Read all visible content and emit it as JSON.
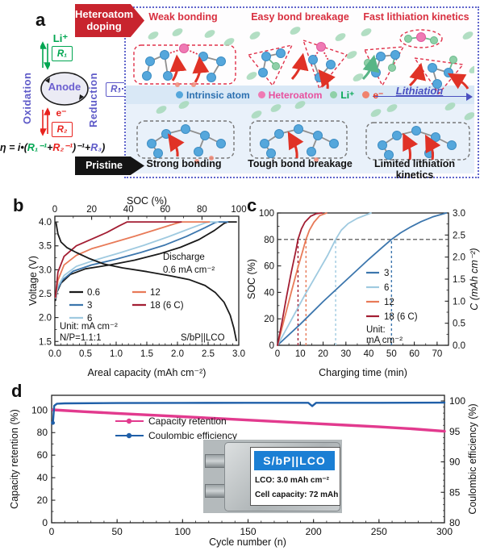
{
  "panel_a": {
    "label": "a",
    "banner_doped_line1": "Heteroatom",
    "banner_doped_line2": "doping",
    "banner_pristine": "Pristine",
    "li": "Li⁺",
    "r1": "R₁",
    "e": "e⁻",
    "r2": "R₂",
    "r3": "R₃",
    "anode": "Anode",
    "oxidation": "Oxidation",
    "reduction": "Reduction",
    "equation": {
      "p1": "η = i•(",
      "r1": "R₁⁻¹",
      "p2": "+",
      "r2": "R₂⁻¹",
      "p3": ")⁻¹+",
      "r3": "R₃",
      "p4": ")"
    },
    "headings_top": [
      "Weak bonding",
      "Easy bond breakage",
      "Fast lithiation kinetics"
    ],
    "headings_bottom": [
      "Strong bonding",
      "Tough bond breakage",
      "Limited lithiation kinetics"
    ],
    "legend": [
      {
        "label": "Intrinsic atom",
        "dot": "#55a7dc",
        "text": "#2a6fb0"
      },
      {
        "label": "Heteroatom",
        "dot": "#ef7ab4",
        "text": "#e8509e"
      },
      {
        "label": "Li⁺",
        "dot": "#8fd0a8",
        "text": "#00a651"
      },
      {
        "label": "e⁻",
        "dot": "#f0836e",
        "text": "#e8432e"
      }
    ],
    "lithiation": "Lithiation"
  },
  "chart_data": [
    {
      "panel": "b",
      "type": "line",
      "xlabel": "Areal capacity (mAh cm⁻²)",
      "ylabel": "Voltage (V)",
      "top_axis_label": "SOC (%)",
      "xlim": [
        0,
        3
      ],
      "ylim": [
        1.5,
        4.0
      ],
      "top_lim": [
        0,
        100
      ],
      "xticks": [
        "0.0",
        "0.5",
        "1.0",
        "1.5",
        "2.0",
        "2.5",
        "3.0"
      ],
      "yticks": [
        "1.5",
        "2.0",
        "2.5",
        "3.0",
        "3.5",
        "4.0"
      ],
      "top_ticks": [
        "0",
        "20",
        "40",
        "60",
        "80",
        "100"
      ],
      "legend": [
        {
          "label": "0.6",
          "color": "#1a1a1a"
        },
        {
          "label": "3",
          "color": "#3c76ad"
        },
        {
          "label": "6",
          "color": "#9fcae0"
        },
        {
          "label": "12",
          "color": "#e87a58"
        },
        {
          "label": "18 (6 C)",
          "color": "#a31e33"
        }
      ],
      "annotations": {
        "discharge1": "Discharge",
        "discharge2": "0.6 mA cm⁻²",
        "unit": "Unit: mA cm⁻²",
        "np": "N/P=1.1:1",
        "cell": "S/bP||LCO"
      },
      "series": [
        {
          "name": "0.6 charge",
          "color": "#1a1a1a",
          "points": [
            [
              0.01,
              2.36
            ],
            [
              0.03,
              2.52
            ],
            [
              0.1,
              2.72
            ],
            [
              0.25,
              2.9
            ],
            [
              0.5,
              3.02
            ],
            [
              0.9,
              3.1
            ],
            [
              1.3,
              3.2
            ],
            [
              1.7,
              3.33
            ],
            [
              2.05,
              3.47
            ],
            [
              2.35,
              3.63
            ],
            [
              2.6,
              3.82
            ],
            [
              2.76,
              3.97
            ],
            [
              2.82,
              4.0
            ],
            [
              2.96,
              4.0
            ]
          ]
        },
        {
          "name": "3",
          "color": "#3c76ad",
          "points": [
            [
              0.01,
              2.4
            ],
            [
              0.04,
              2.58
            ],
            [
              0.12,
              2.78
            ],
            [
              0.3,
              2.97
            ],
            [
              0.6,
              3.1
            ],
            [
              1.0,
              3.22
            ],
            [
              1.4,
              3.36
            ],
            [
              1.8,
              3.52
            ],
            [
              2.15,
              3.7
            ],
            [
              2.45,
              3.88
            ],
            [
              2.62,
              3.99
            ],
            [
              2.66,
              4.0
            ],
            [
              2.82,
              4.0
            ]
          ]
        },
        {
          "name": "6",
          "color": "#9fcae0",
          "points": [
            [
              0.01,
              2.41
            ],
            [
              0.05,
              2.65
            ],
            [
              0.15,
              2.88
            ],
            [
              0.35,
              3.07
            ],
            [
              0.65,
              3.2
            ],
            [
              1.05,
              3.35
            ],
            [
              1.45,
              3.51
            ],
            [
              1.85,
              3.69
            ],
            [
              2.2,
              3.86
            ],
            [
              2.45,
              3.98
            ],
            [
              2.52,
              4.0
            ],
            [
              2.66,
              4.0
            ]
          ]
        },
        {
          "name": "12",
          "color": "#e87a58",
          "points": [
            [
              0.01,
              2.42
            ],
            [
              0.05,
              2.78
            ],
            [
              0.15,
              3.1
            ],
            [
              0.35,
              3.3
            ],
            [
              0.6,
              3.44
            ],
            [
              0.95,
              3.57
            ],
            [
              1.3,
              3.7
            ],
            [
              1.65,
              3.84
            ],
            [
              1.95,
              3.96
            ],
            [
              2.06,
              4.0
            ],
            [
              2.52,
              4.0
            ]
          ]
        },
        {
          "name": "18 (6 C)",
          "color": "#a31e33",
          "points": [
            [
              0.01,
              2.43
            ],
            [
              0.05,
              2.95
            ],
            [
              0.15,
              3.28
            ],
            [
              0.35,
              3.5
            ],
            [
              0.6,
              3.64
            ],
            [
              0.85,
              3.78
            ],
            [
              1.05,
              3.92
            ],
            [
              1.18,
              4.0
            ],
            [
              2.06,
              4.0
            ]
          ]
        },
        {
          "name": "0.6 discharge",
          "color": "#1a1a1a",
          "points": [
            [
              0.02,
              3.98
            ],
            [
              0.05,
              3.75
            ],
            [
              0.1,
              3.58
            ],
            [
              0.2,
              3.46
            ],
            [
              0.35,
              3.36
            ],
            [
              0.55,
              3.24
            ],
            [
              0.8,
              3.12
            ],
            [
              1.1,
              3.04
            ],
            [
              1.5,
              2.96
            ],
            [
              1.9,
              2.87
            ],
            [
              2.2,
              2.79
            ],
            [
              2.45,
              2.67
            ],
            [
              2.62,
              2.52
            ],
            [
              2.76,
              2.32
            ],
            [
              2.86,
              2.05
            ],
            [
              2.92,
              1.78
            ],
            [
              2.96,
              1.52
            ]
          ]
        }
      ]
    },
    {
      "panel": "c",
      "type": "line",
      "xlabel": "Charging time (min)",
      "ylabel": "SOC (%)",
      "y2label": "C (mAh cm⁻²)",
      "xlim": [
        0,
        75
      ],
      "ylim": [
        0,
        100
      ],
      "y2lim": [
        0,
        3
      ],
      "xticks": [
        "0",
        "10",
        "20",
        "30",
        "40",
        "50",
        "60",
        "70"
      ],
      "yticks": [
        "0",
        "20",
        "40",
        "60",
        "80",
        "100"
      ],
      "y2ticks": [
        "0.0",
        "0.5",
        "1.0",
        "1.5",
        "2.0",
        "2.5",
        "3.0"
      ],
      "legend": [
        {
          "label": "3",
          "color": "#3c76ad"
        },
        {
          "label": "6",
          "color": "#9fcae0"
        },
        {
          "label": "12",
          "color": "#e87a58"
        },
        {
          "label": "18 (6 C)",
          "color": "#a31e33"
        }
      ],
      "annotations": {
        "unit1": "Unit:",
        "unit2": "mA cm⁻²"
      },
      "guide_h": 80,
      "guides_v": [
        {
          "x": 9,
          "color": "#a31e33"
        },
        {
          "x": 12.5,
          "color": "#e87a58"
        },
        {
          "x": 25.5,
          "color": "#9fcae0"
        },
        {
          "x": 50,
          "color": "#3c76ad"
        }
      ],
      "series": [
        {
          "name": "3",
          "color": "#3c76ad",
          "points": [
            [
              0,
              0
            ],
            [
              10,
              16
            ],
            [
              20,
              33
            ],
            [
              30,
              49
            ],
            [
              40,
              65
            ],
            [
              46,
              74
            ],
            [
              50,
              80
            ],
            [
              54,
              85
            ],
            [
              58,
              89
            ],
            [
              63,
              93.5
            ],
            [
              68,
              97
            ],
            [
              74,
              100
            ]
          ]
        },
        {
          "name": "6",
          "color": "#9fcae0",
          "points": [
            [
              0,
              0
            ],
            [
              6,
              19
            ],
            [
              12,
              38
            ],
            [
              18,
              56
            ],
            [
              22,
              68
            ],
            [
              25.5,
              80
            ],
            [
              28,
              87
            ],
            [
              31,
              92
            ],
            [
              35,
              96
            ],
            [
              41,
              100
            ]
          ]
        },
        {
          "name": "12",
          "color": "#e87a58",
          "points": [
            [
              0,
              0
            ],
            [
              3,
              20
            ],
            [
              6,
              40
            ],
            [
              9,
              59
            ],
            [
              11,
              71
            ],
            [
              12.5,
              80
            ],
            [
              14,
              87
            ],
            [
              16,
              93
            ],
            [
              18.5,
              98
            ],
            [
              21.5,
              100
            ]
          ]
        },
        {
          "name": "18 (6 C)",
          "color": "#a31e33",
          "points": [
            [
              0,
              0
            ],
            [
              2,
              18
            ],
            [
              4,
              37
            ],
            [
              6,
              55
            ],
            [
              8,
              71
            ],
            [
              9,
              80
            ],
            [
              10.5,
              88
            ],
            [
              12,
              93
            ],
            [
              14.5,
              97.5
            ],
            [
              17,
              99.5
            ],
            [
              19.5,
              100
            ]
          ]
        }
      ]
    },
    {
      "panel": "d",
      "type": "line",
      "xlabel": "Cycle number (n)",
      "ylabel": "Capacity retention (%)",
      "y2label": "Coulombic efficiency (%)",
      "xlim": [
        0,
        300
      ],
      "ylim": [
        0,
        113
      ],
      "y2lim": [
        80,
        100
      ],
      "xticks": [
        "0",
        "50",
        "100",
        "150",
        "200",
        "250",
        "300"
      ],
      "yticks": [
        "0",
        "20",
        "40",
        "60",
        "80",
        "100"
      ],
      "y2ticks": [
        "80",
        "85",
        "90",
        "95",
        "100"
      ],
      "legend": [
        {
          "label": "Capacity retention",
          "color": "#e23a8e"
        },
        {
          "label": "Coulombic efficiency",
          "color": "#1f5fa8"
        }
      ],
      "inset": {
        "title": "S/bP||LCO",
        "line1": "LCO: 3.0 mAh cm⁻²",
        "line2": "Cell capacity: 72 mAh"
      },
      "series": [
        {
          "name": "Capacity retention",
          "color": "#e23a8e",
          "axis": "left",
          "points": [
            [
              1,
              100.2
            ],
            [
              25,
              98.6
            ],
            [
              50,
              97.1
            ],
            [
              75,
              95.6
            ],
            [
              100,
              94.1
            ],
            [
              125,
              92.6
            ],
            [
              150,
              91.1
            ],
            [
              175,
              89.6
            ],
            [
              200,
              88.1
            ],
            [
              225,
              86.6
            ],
            [
              250,
              85.1
            ],
            [
              275,
              83.4
            ],
            [
              300,
              81.2
            ]
          ]
        },
        {
          "name": "Coulombic efficiency",
          "color": "#1f5fa8",
          "axis": "right",
          "points": [
            [
              1,
              96.4
            ],
            [
              2,
              99.2
            ],
            [
              4,
              99.55
            ],
            [
              10,
              99.6
            ],
            [
              50,
              99.65
            ],
            [
              100,
              99.68
            ],
            [
              150,
              99.7
            ],
            [
              196,
              99.7
            ],
            [
              199,
              99.15
            ],
            [
              202,
              99.7
            ],
            [
              250,
              99.7
            ],
            [
              300,
              99.72
            ]
          ]
        }
      ]
    }
  ],
  "panel_labels": {
    "b": "b",
    "c": "c",
    "d": "d"
  }
}
